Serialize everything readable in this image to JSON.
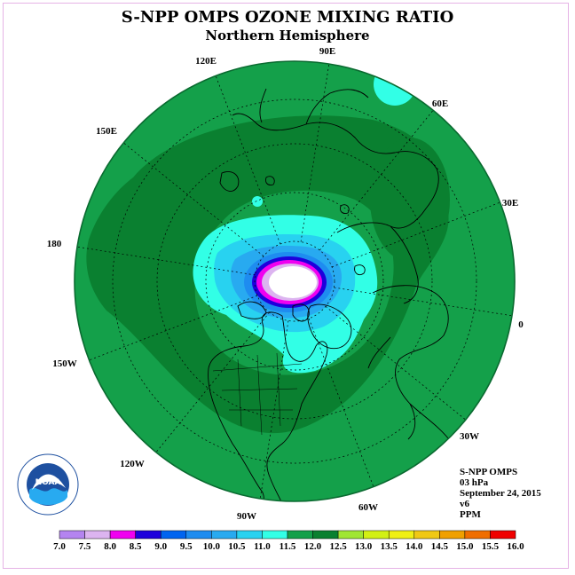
{
  "title": "S-NPP OMPS OZONE MIXING RATIO",
  "subtitle": "Northern Hemisphere",
  "longitude_labels": [
    "90E",
    "60E",
    "30E",
    "0",
    "30W",
    "60W",
    "90W",
    "120W",
    "150W",
    "180",
    "150E",
    "120E"
  ],
  "info": {
    "instrument": "S-NPP OMPS",
    "pressure": "03 hPa",
    "date": "September 24, 2015",
    "version": "v6",
    "units": "PPM"
  },
  "colorbar": {
    "ticks": [
      "7.0",
      "7.5",
      "8.0",
      "8.5",
      "9.0",
      "9.5",
      "10.0",
      "10.5",
      "11.0",
      "11.5",
      "12.0",
      "12.5",
      "13.0",
      "13.5",
      "14.0",
      "14.5",
      "15.0",
      "15.5",
      "16.0"
    ],
    "colors": [
      "#b484f0",
      "#dcb4f0",
      "#f000f0",
      "#1e00dc",
      "#0064f0",
      "#1e8cf0",
      "#28aaf0",
      "#28d2f0",
      "#32ffe6",
      "#14a04a",
      "#0a8030",
      "#a0e632",
      "#d2f014",
      "#f0f014",
      "#f0c814",
      "#f0a000",
      "#f06e00",
      "#f00000",
      "#8c5028"
    ]
  },
  "logo": {
    "text": "NOAA"
  }
}
